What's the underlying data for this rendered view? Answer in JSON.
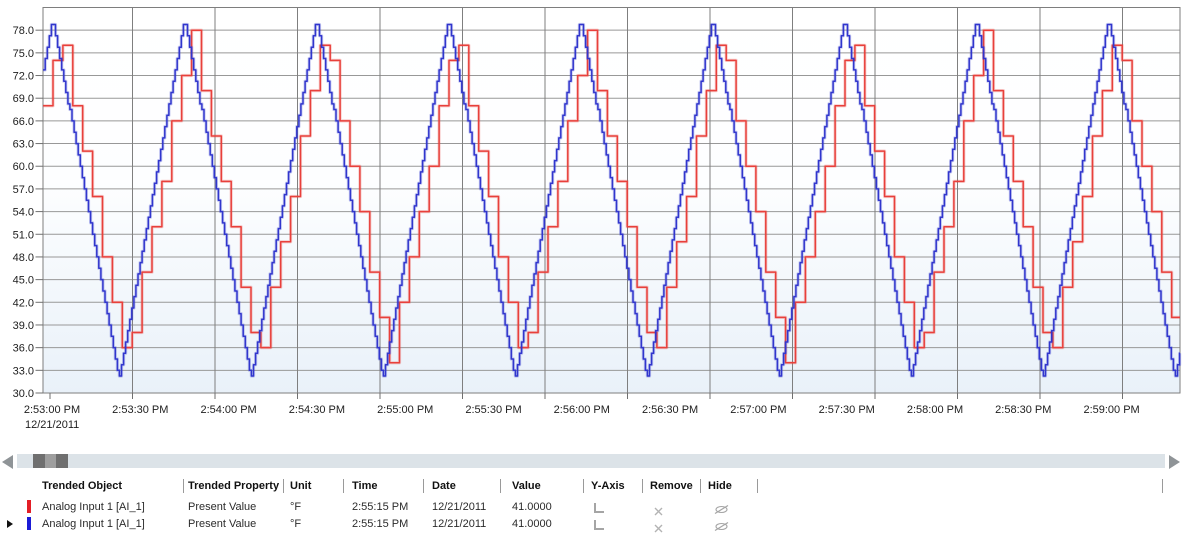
{
  "chart_data": {
    "type": "line",
    "title": "",
    "grid": true,
    "legend_position": "table-below-chart",
    "date_label": "12/21/2011",
    "x_tick_interval_seconds": 30,
    "x_tick_labels": [
      "2:53:00 PM",
      "2:53:30 PM",
      "2:54:00 PM",
      "2:54:30 PM",
      "2:55:00 PM",
      "2:55:30 PM",
      "2:56:00 PM",
      "2:56:30 PM",
      "2:57:00 PM",
      "2:57:30 PM",
      "2:58:00 PM",
      "2:58:30 PM",
      "2:59:00 PM"
    ],
    "y_tick_labels": [
      "78.0",
      "75.0",
      "72.0",
      "69.0",
      "66.0",
      "63.0",
      "60.0",
      "57.0",
      "54.0",
      "51.0",
      "48.0",
      "45.0",
      "42.0",
      "39.0",
      "36.0",
      "33.0",
      "30.0"
    ],
    "ylim": [
      30,
      81
    ],
    "y_tick_step": 3,
    "window_seconds": {
      "start": -2.5,
      "end": 410.9
    },
    "series": [
      {
        "name": "Analog Input 1 [AI_1]",
        "color": "#e8403b",
        "waveform": {
          "shape": "quantized-triangle-staircase",
          "period_s": 48,
          "peak_offset_s": 3.2,
          "min": 34,
          "max": 78,
          "quantize_units": 2,
          "sample_interval_s": 3.6
        }
      },
      {
        "name": "Analog Input 1 [AI_1]",
        "color": "#3136cd",
        "waveform": {
          "shape": "quantized-triangle-staircase",
          "period_s": 48,
          "peak_offset_s": 1,
          "min": 32,
          "max": 79.5,
          "quantize_units": 0.75,
          "sample_interval_s": 0.75
        }
      }
    ]
  },
  "table": {
    "columns": [
      "Trended Object",
      "Trended Property",
      "Unit",
      "Time",
      "Date",
      "Value",
      "Y-Axis",
      "Remove",
      "Hide"
    ],
    "rows": [
      {
        "swatch_color": "#e31e26",
        "selected": false,
        "trended_object": "Analog Input 1 [AI_1]",
        "trended_property": "Present Value",
        "unit": "°F",
        "time": "2:55:15 PM",
        "date": "12/21/2011",
        "value": "41.0000"
      },
      {
        "swatch_color": "#1b1bd6",
        "selected": true,
        "trended_object": "Analog Input 1 [AI_1]",
        "trended_property": "Present Value",
        "unit": "°F",
        "time": "2:55:15 PM",
        "date": "12/21/2011",
        "value": "41.0000"
      }
    ]
  }
}
